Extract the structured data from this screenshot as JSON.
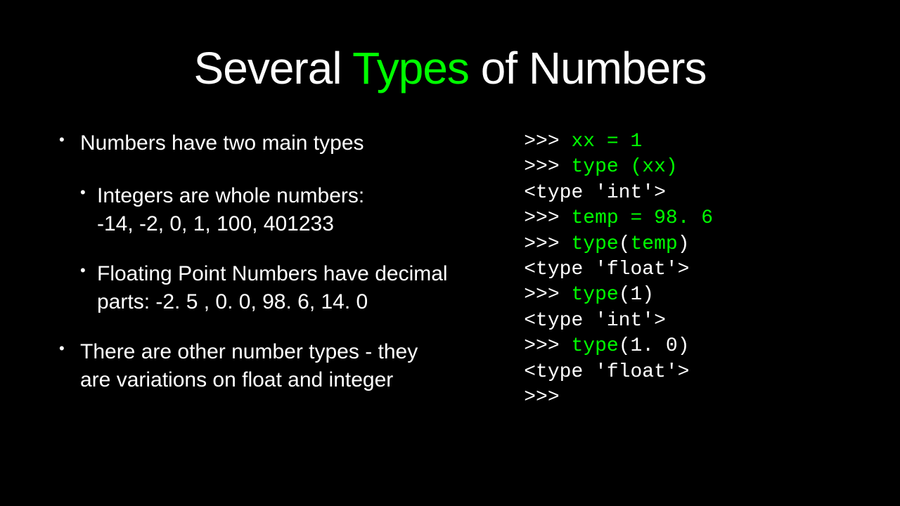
{
  "colors": {
    "background": "#000000",
    "text": "#ffffff",
    "accent": "#00ff00",
    "code_prompt": "#ffffff",
    "code_keyword": "#00ff00"
  },
  "typography": {
    "title_fontsize": 64,
    "body_fontsize": 30,
    "code_fontsize": 28,
    "body_font": "Segoe UI / Helvetica Neue / sans-serif",
    "code_font": "Courier New / monospace"
  },
  "title": {
    "part1": "Several ",
    "accent": "Types",
    "part2": " of Numbers"
  },
  "bullets": {
    "b1": "Numbers have two main types",
    "b1a_line1": "Integers are whole numbers:",
    "b1a_line2": " -14, -2, 0, 1, 100, 401233",
    "b1b_line1": "Floating Point Numbers have decimal",
    "b1b_line2": "parts:  -2. 5 , 0. 0, 98. 6, 14. 0",
    "b2_line1": "There are other number types - they",
    "b2_line2": "are variations on float and integer"
  },
  "code": {
    "l1a": ">>> ",
    "l1b": "xx = 1",
    "l2a": ">>> ",
    "l2b": "type (xx)",
    "l3": "<type 'int'>",
    "l4a": ">>> ",
    "l4b": "temp = 98. 6",
    "l5a": ">>> ",
    "l5b": "type",
    "l5c": "(",
    "l5d": "temp",
    "l5e": ")",
    "l6": "<type 'float'>",
    "l7a": ">>> ",
    "l7b": "type",
    "l7c": "(1)",
    "l8": "<type 'int'>",
    "l9a": ">>> ",
    "l9b": "type",
    "l9c": "(1. 0)",
    "l10": "<type 'float'>",
    "l11": ">>>"
  }
}
